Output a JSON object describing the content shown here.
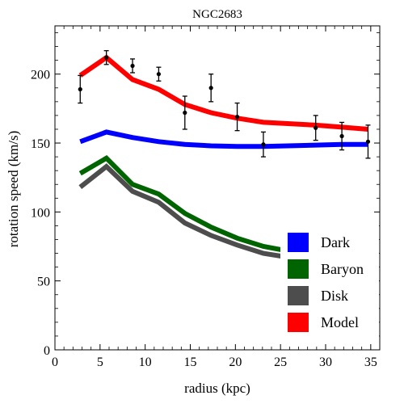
{
  "chart_data": {
    "type": "line",
    "title": "NGC2683",
    "xlabel": "radius (kpc)",
    "ylabel": "rotation speed (km/s)",
    "xlim": [
      0,
      36
    ],
    "ylim": [
      0,
      235
    ],
    "xticks": [
      0,
      5,
      10,
      15,
      20,
      25,
      30,
      35
    ],
    "yticks": [
      0,
      50,
      100,
      150,
      200
    ],
    "grid": false,
    "legend_position": "bottom-right",
    "series": [
      {
        "name": "Dark",
        "color": "#0000ff",
        "x": [
          2.8,
          5.7,
          8.6,
          11.5,
          14.4,
          17.3,
          20.2,
          23.1,
          28.9,
          31.8,
          34.7
        ],
        "y": [
          151,
          158,
          154,
          151,
          149,
          148,
          147.5,
          147.5,
          148.5,
          149,
          149
        ]
      },
      {
        "name": "Baryon",
        "color": "#006400",
        "x": [
          2.8,
          5.7,
          8.6,
          11.5,
          14.4,
          17.3,
          20.2,
          23.1,
          28.9,
          31.8,
          34.7
        ],
        "y": [
          128,
          139,
          120,
          113,
          99,
          89,
          81,
          75,
          68,
          65,
          62
        ]
      },
      {
        "name": "Disk",
        "color": "#4d4d4d",
        "x": [
          2.8,
          5.7,
          8.6,
          11.5,
          14.4,
          17.3,
          20.2,
          23.1,
          28.9,
          31.8,
          34.7
        ],
        "y": [
          118,
          133,
          115,
          107,
          92,
          83,
          76,
          70,
          64,
          61,
          58
        ]
      },
      {
        "name": "Model",
        "color": "#ff0000",
        "x": [
          2.8,
          5.7,
          8.6,
          11.5,
          14.4,
          17.3,
          20.2,
          23.1,
          28.9,
          31.8,
          34.7
        ],
        "y": [
          199,
          212,
          196,
          189,
          178,
          172,
          168,
          165,
          163,
          161.5,
          160
        ]
      }
    ],
    "observed": {
      "x": [
        2.8,
        5.7,
        8.6,
        11.5,
        14.4,
        17.3,
        20.2,
        23.1,
        28.9,
        31.8,
        34.7
      ],
      "y": [
        189,
        212,
        206,
        200,
        172,
        190,
        169,
        149,
        161,
        155,
        151
      ],
      "err": [
        10,
        5,
        5,
        5,
        12,
        10,
        10,
        9,
        9,
        10,
        12
      ],
      "color": "#000000"
    }
  }
}
